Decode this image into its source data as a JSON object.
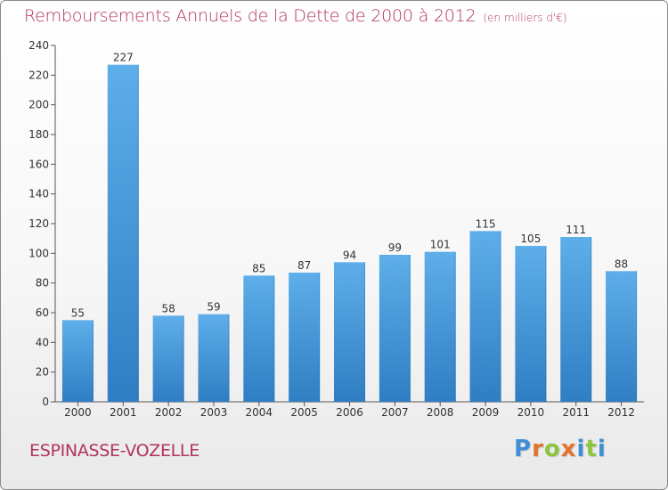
{
  "header": {
    "title": "Remboursements Annuels de la Dette de 2000 à 2012",
    "unit_note": "(en milliers d'€)"
  },
  "footer": {
    "commune": "ESPINASSE-VOZELLE",
    "logo_text": "Proxiti"
  },
  "colors": {
    "title": "#b1325f",
    "bar_top": "#5eaeea",
    "bar_bottom": "#2f7ec3",
    "logo_letters": [
      "#3d8fd6",
      "#e3732c",
      "#8cc63f",
      "#e3732c",
      "#3d8fd6",
      "#8cc63f",
      "#3d8fd6"
    ]
  },
  "chart_data": {
    "type": "bar",
    "categories": [
      "2000",
      "2001",
      "2002",
      "2003",
      "2004",
      "2005",
      "2006",
      "2007",
      "2008",
      "2009",
      "2010",
      "2011",
      "2012"
    ],
    "values": [
      55,
      227,
      58,
      59,
      85,
      87,
      94,
      99,
      101,
      115,
      105,
      111,
      88
    ],
    "title": "Remboursements Annuels de la Dette de 2000 à 2012",
    "xlabel": "",
    "ylabel": "",
    "ylim": [
      0,
      240
    ],
    "yticks": [
      0,
      20,
      40,
      60,
      80,
      100,
      120,
      140,
      160,
      180,
      200,
      220,
      240
    ],
    "grid": false,
    "data_labels": true
  }
}
